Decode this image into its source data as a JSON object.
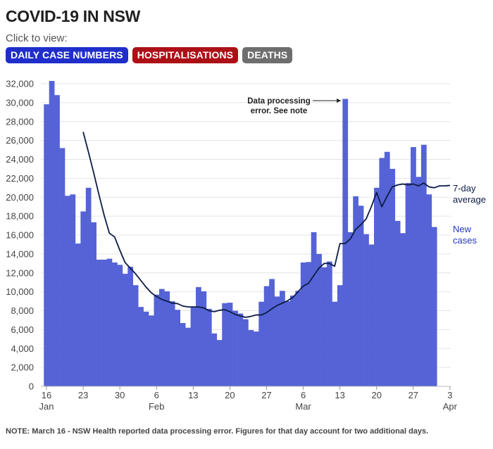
{
  "header": {
    "title": "COVID-19 IN NSW",
    "subtitle": "Click to view:",
    "buttons": {
      "cases": "DAILY CASE NUMBERS",
      "hospitalisations": "HOSPITALISATIONS",
      "deaths": "DEATHS"
    }
  },
  "colors": {
    "bars": "#5563d6",
    "line": "#0d1b45",
    "grid": "#e4e4e4",
    "cases_button": "#1f2ecb",
    "hospitalisations_button": "#ad0f17",
    "deaths_button": "#6e6e6e"
  },
  "note": "NOTE: March 16 - NSW Health reported data processing error. Figures for that day account for two additional days.",
  "chart_data": {
    "type": "bar",
    "grid": true,
    "ylim": [
      0,
      32000
    ],
    "yticks": [
      0,
      2000,
      4000,
      6000,
      8000,
      10000,
      12000,
      14000,
      16000,
      18000,
      20000,
      22000,
      24000,
      26000,
      28000,
      30000,
      32000
    ],
    "ytick_labels": [
      "0",
      "2,000",
      "4,000",
      "6,000",
      "8,000",
      "10,000",
      "12,000",
      "14,000",
      "16,000",
      "18,000",
      "20,000",
      "22,000",
      "24,000",
      "26,000",
      "28,000",
      "30,000",
      "32,000"
    ],
    "xticks": [
      {
        "day": 0,
        "label": "16",
        "sub": "Jan"
      },
      {
        "day": 7,
        "label": "23",
        "sub": ""
      },
      {
        "day": 14,
        "label": "30",
        "sub": ""
      },
      {
        "day": 21,
        "label": "6",
        "sub": "Feb"
      },
      {
        "day": 28,
        "label": "13",
        "sub": ""
      },
      {
        "day": 35,
        "label": "20",
        "sub": ""
      },
      {
        "day": 42,
        "label": "27",
        "sub": ""
      },
      {
        "day": 49,
        "label": "6",
        "sub": "Mar"
      },
      {
        "day": 56,
        "label": "13",
        "sub": ""
      },
      {
        "day": 63,
        "label": "20",
        "sub": ""
      },
      {
        "day": 70,
        "label": "27",
        "sub": ""
      },
      {
        "day": 77,
        "label": "3",
        "sub": "Apr"
      }
    ],
    "series": [
      {
        "name": "New cases",
        "kind": "bar",
        "values": [
          29830,
          32300,
          30800,
          25200,
          20150,
          20300,
          15100,
          18500,
          21000,
          17350,
          13400,
          13400,
          13500,
          13100,
          12850,
          11900,
          12650,
          10700,
          8400,
          7900,
          7500,
          9700,
          10300,
          10050,
          9000,
          8100,
          6700,
          6200,
          8350,
          10500,
          10050,
          8200,
          5600,
          4900,
          8800,
          8850,
          8000,
          7700,
          7100,
          5950,
          5800,
          8950,
          10600,
          11350,
          9500,
          10100,
          9000,
          9600,
          10100,
          13100,
          13150,
          16300,
          14000,
          12600,
          13200,
          8950,
          10700,
          30400,
          16300,
          20100,
          19100,
          16100,
          15000,
          21000,
          24150,
          24800,
          23000,
          17500,
          16200,
          21500,
          25300,
          22150,
          25550,
          20300,
          16850
        ],
        "label": "New cases"
      },
      {
        "name": "7-day average",
        "kind": "line",
        "x": [
          7,
          8,
          9,
          10,
          11,
          12,
          13,
          14,
          15,
          16,
          17,
          18,
          19,
          20,
          21,
          22,
          23,
          24,
          25,
          26,
          27,
          28,
          29,
          30,
          31,
          32,
          33,
          34,
          35,
          36,
          37,
          38,
          39,
          40,
          41,
          42,
          43,
          44,
          45,
          46,
          47,
          48,
          49,
          50,
          51,
          52,
          53,
          54,
          55,
          56,
          57,
          58,
          59,
          60,
          61,
          62,
          63,
          64,
          65,
          66,
          67,
          68,
          69,
          70,
          71,
          72,
          73,
          74,
          75,
          76,
          77
        ],
        "values": [
          26900,
          24800,
          22600,
          20300,
          18100,
          16200,
          15800,
          14400,
          13100,
          12500,
          11900,
          11200,
          10500,
          9900,
          9500,
          9200,
          9000,
          8800,
          8750,
          8500,
          8400,
          8400,
          8400,
          8300,
          8000,
          7900,
          8050,
          8100,
          7900,
          7600,
          7450,
          7300,
          7400,
          7550,
          7550,
          7800,
          8200,
          8550,
          8800,
          9050,
          9400,
          10000,
          10600,
          10900,
          11700,
          12500,
          13000,
          13000,
          12700,
          15100,
          15100,
          15600,
          16600,
          17100,
          17700,
          19000,
          20500,
          19000,
          20100,
          21100,
          21300,
          21400,
          21300,
          21400,
          21200,
          21500,
          21100,
          21000,
          21200,
          21200,
          21250
        ],
        "label": "7-day average"
      }
    ],
    "labels": {
      "avg_line1": "7-day",
      "avg_line2": "average",
      "cases_line1": "New",
      "cases_line2": "cases"
    },
    "annotation": {
      "line1": "Data processing",
      "line2": "error. See note",
      "target_day": 57
    }
  }
}
